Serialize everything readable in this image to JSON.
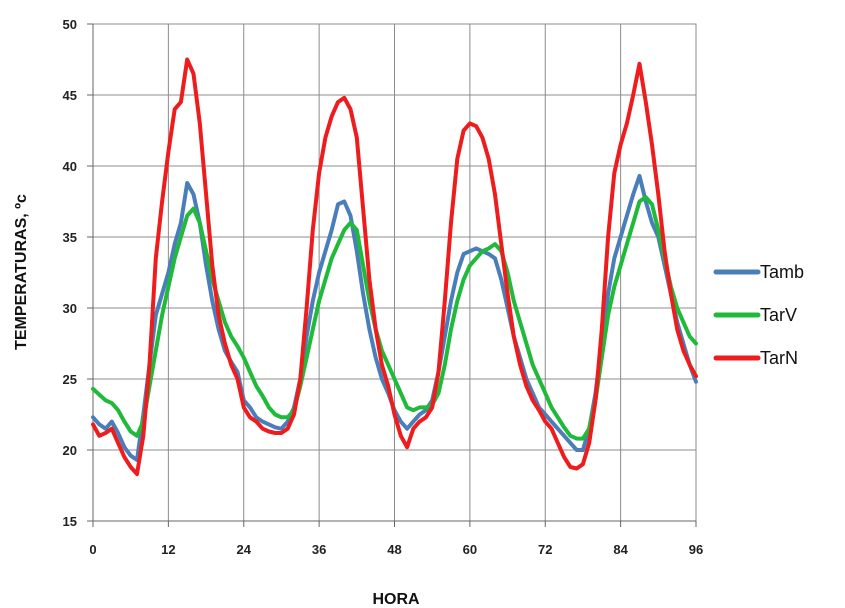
{
  "chart_data": {
    "type": "line",
    "xlabel": "HORA",
    "ylabel": "TEMPERATURAS, ºc",
    "xlim": [
      0,
      96
    ],
    "ylim": [
      15,
      50
    ],
    "xticks": [
      "0",
      "12",
      "24",
      "36",
      "48",
      "60",
      "72",
      "84",
      "96"
    ],
    "yticks": [
      "15",
      "20",
      "25",
      "30",
      "35",
      "40",
      "45",
      "50"
    ],
    "grid": true,
    "legend": "right",
    "series": [
      {
        "name": "Tamb",
        "color": "#4a7ebb",
        "x": [
          0,
          1,
          2,
          3,
          4,
          5,
          6,
          7,
          8,
          9,
          10,
          11,
          12,
          13,
          14,
          15,
          16,
          17,
          18,
          19,
          20,
          21,
          22,
          23,
          24,
          25,
          26,
          27,
          28,
          29,
          30,
          31,
          32,
          33,
          34,
          35,
          36,
          37,
          38,
          39,
          40,
          41,
          42,
          43,
          44,
          45,
          46,
          47,
          48,
          49,
          50,
          51,
          52,
          53,
          54,
          55,
          56,
          57,
          58,
          59,
          60,
          61,
          62,
          63,
          64,
          65,
          66,
          67,
          68,
          69,
          70,
          71,
          72,
          73,
          74,
          75,
          76,
          77,
          78,
          79,
          80,
          81,
          82,
          83,
          84,
          85,
          86,
          87,
          88,
          89,
          90,
          91,
          92,
          93,
          94,
          95,
          96
        ],
        "values": [
          22.3,
          21.8,
          21.5,
          22.0,
          21.2,
          20.2,
          19.6,
          19.3,
          22.5,
          26.0,
          29.5,
          31.0,
          32.5,
          34.5,
          36.0,
          38.8,
          38.0,
          36.0,
          33.0,
          30.5,
          28.5,
          27.0,
          26.2,
          25.5,
          23.5,
          23.0,
          22.3,
          22.0,
          21.8,
          21.6,
          21.5,
          22.0,
          23.0,
          25.0,
          28.0,
          30.5,
          32.5,
          34.0,
          35.5,
          37.3,
          37.5,
          36.5,
          34.0,
          31.0,
          28.5,
          26.5,
          25.0,
          24.0,
          22.8,
          22.0,
          21.5,
          22.0,
          22.5,
          22.8,
          23.5,
          25.5,
          28.0,
          30.5,
          32.5,
          33.8,
          34.0,
          34.2,
          34.0,
          33.8,
          33.5,
          32.0,
          30.0,
          28.0,
          26.5,
          25.0,
          24.0,
          23.0,
          22.5,
          22.0,
          21.5,
          21.0,
          20.5,
          20.0,
          20.0,
          21.5,
          24.0,
          27.5,
          31.0,
          33.5,
          35.0,
          36.5,
          38.0,
          39.3,
          37.5,
          36.0,
          35.0,
          33.0,
          31.0,
          29.0,
          27.5,
          26.0,
          24.8
        ]
      },
      {
        "name": "TarV",
        "color": "#1fba3a",
        "x": [
          0,
          1,
          2,
          3,
          4,
          5,
          6,
          7,
          8,
          9,
          10,
          11,
          12,
          13,
          14,
          15,
          16,
          17,
          18,
          19,
          20,
          21,
          22,
          23,
          24,
          25,
          26,
          27,
          28,
          29,
          30,
          31,
          32,
          33,
          34,
          35,
          36,
          37,
          38,
          39,
          40,
          41,
          42,
          43,
          44,
          45,
          46,
          47,
          48,
          49,
          50,
          51,
          52,
          53,
          54,
          55,
          56,
          57,
          58,
          59,
          60,
          61,
          62,
          63,
          64,
          65,
          66,
          67,
          68,
          69,
          70,
          71,
          72,
          73,
          74,
          75,
          76,
          77,
          78,
          79,
          80,
          81,
          82,
          83,
          84,
          85,
          86,
          87,
          88,
          89,
          90,
          91,
          92,
          93,
          94,
          95,
          96
        ],
        "values": [
          24.3,
          23.9,
          23.5,
          23.3,
          22.8,
          22.0,
          21.3,
          21.0,
          22.0,
          24.5,
          27.0,
          29.5,
          31.5,
          33.5,
          35.0,
          36.5,
          37.0,
          36.0,
          34.0,
          32.0,
          30.5,
          29.0,
          28.0,
          27.3,
          26.5,
          25.5,
          24.5,
          23.8,
          23.0,
          22.5,
          22.3,
          22.3,
          22.8,
          24.5,
          26.5,
          28.5,
          30.5,
          32.0,
          33.5,
          34.5,
          35.5,
          36.0,
          35.5,
          33.0,
          30.5,
          28.5,
          27.0,
          26.0,
          25.0,
          24.0,
          23.0,
          22.8,
          23.0,
          23.0,
          23.2,
          24.0,
          26.0,
          28.5,
          30.5,
          32.0,
          33.0,
          33.5,
          34.0,
          34.2,
          34.5,
          34.0,
          32.5,
          30.5,
          29.0,
          27.5,
          26.0,
          25.0,
          24.0,
          23.0,
          22.3,
          21.6,
          21.0,
          20.8,
          20.8,
          21.5,
          23.5,
          26.5,
          29.5,
          31.5,
          33.0,
          34.5,
          36.0,
          37.5,
          37.8,
          37.3,
          35.5,
          33.5,
          31.5,
          30.0,
          29.0,
          28.0,
          27.5
        ]
      },
      {
        "name": "TarN",
        "color": "#ee1c1c",
        "x": [
          0,
          1,
          2,
          3,
          4,
          5,
          6,
          7,
          8,
          9,
          10,
          11,
          12,
          13,
          14,
          15,
          16,
          17,
          18,
          19,
          20,
          21,
          22,
          23,
          24,
          25,
          26,
          27,
          28,
          29,
          30,
          31,
          32,
          33,
          34,
          35,
          36,
          37,
          38,
          39,
          40,
          41,
          42,
          43,
          44,
          45,
          46,
          47,
          48,
          49,
          50,
          51,
          52,
          53,
          54,
          55,
          56,
          57,
          58,
          59,
          60,
          61,
          62,
          63,
          64,
          65,
          66,
          67,
          68,
          69,
          70,
          71,
          72,
          73,
          74,
          75,
          76,
          77,
          78,
          79,
          80,
          81,
          82,
          83,
          84,
          85,
          86,
          87,
          88,
          89,
          90,
          91,
          92,
          93,
          94,
          95,
          96
        ],
        "values": [
          21.8,
          21.0,
          21.2,
          21.5,
          20.5,
          19.5,
          18.8,
          18.3,
          21.0,
          26.0,
          33.5,
          37.5,
          41.0,
          44.0,
          44.5,
          47.5,
          46.5,
          43.0,
          38.0,
          33.0,
          29.5,
          27.5,
          26.0,
          25.0,
          23.0,
          22.3,
          22.0,
          21.5,
          21.3,
          21.2,
          21.2,
          21.5,
          22.5,
          25.0,
          30.0,
          35.5,
          39.5,
          42.0,
          43.5,
          44.5,
          44.8,
          44.0,
          42.0,
          37.0,
          32.0,
          28.5,
          26.0,
          24.5,
          22.5,
          21.0,
          20.2,
          21.5,
          22.0,
          22.3,
          23.0,
          25.5,
          30.5,
          36.0,
          40.5,
          42.5,
          43.0,
          42.8,
          42.0,
          40.5,
          38.0,
          34.5,
          31.0,
          28.0,
          26.0,
          24.5,
          23.5,
          22.8,
          22.0,
          21.5,
          20.5,
          19.5,
          18.8,
          18.7,
          19.0,
          20.5,
          23.5,
          28.5,
          35.0,
          39.5,
          41.5,
          43.0,
          45.0,
          47.2,
          44.5,
          41.5,
          38.0,
          34.0,
          31.0,
          28.5,
          27.0,
          26.0,
          25.2
        ]
      }
    ]
  }
}
